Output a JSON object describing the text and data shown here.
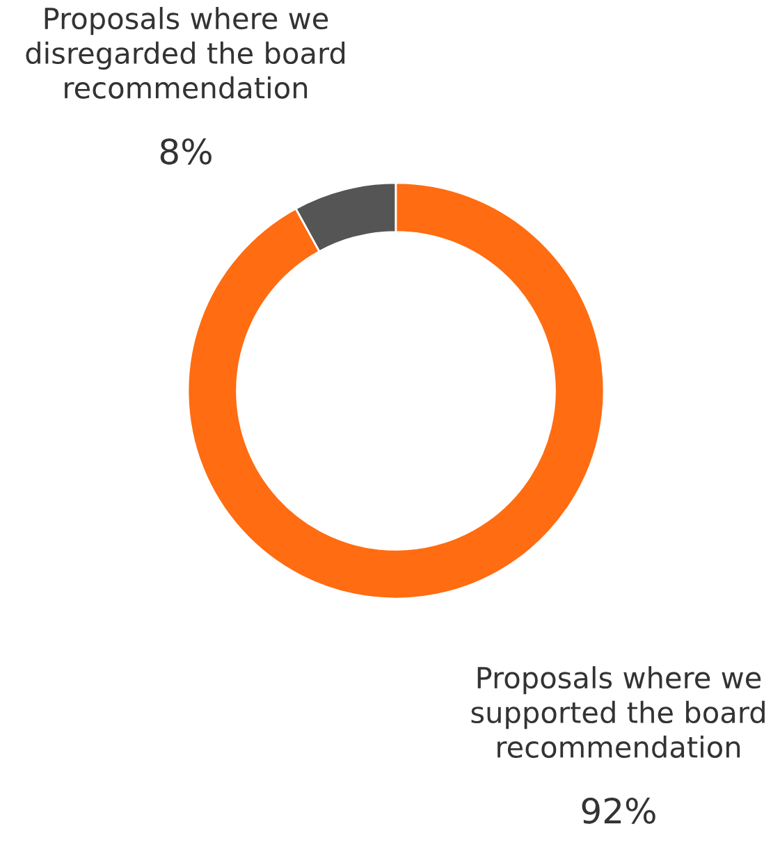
{
  "chart_data": {
    "type": "donut",
    "categories": [
      "Proposals where we\ndisregarded the board\nrecommendation",
      "Proposals where we\nsupported the board\nrecommendation"
    ],
    "values": [
      8,
      92
    ],
    "colors": [
      "#555555",
      "#ff6c11"
    ],
    "value_labels": [
      "8%",
      "92%"
    ],
    "legend": false
  }
}
